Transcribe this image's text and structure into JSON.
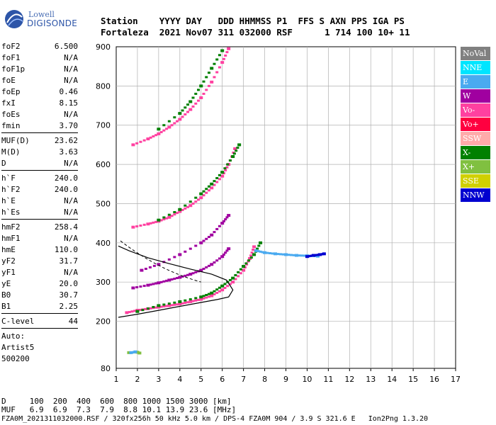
{
  "logo": {
    "line1": "Lowell",
    "line2": "DIGISONDE"
  },
  "header": {
    "line1": "Station    YYYY DAY   DDD HHMMSS P1  FFS S AXN PPS IGA PS",
    "line2": "Fortaleza  2021 Nov07 311 032000 RSF      1 714 100 10+ 11"
  },
  "params": [
    {
      "label": "foF2",
      "value": "6.500"
    },
    {
      "label": "foF1",
      "value": "N/A"
    },
    {
      "label": "foF1p",
      "value": "N/A"
    },
    {
      "label": "foE",
      "value": "N/A"
    },
    {
      "label": "foEp",
      "value": "0.46"
    },
    {
      "label": "fxI",
      "value": "8.15"
    },
    {
      "label": "foEs",
      "value": "N/A"
    },
    {
      "label": "fmin",
      "value": "3.70"
    },
    {
      "label": "MUF(D)",
      "value": "23.62"
    },
    {
      "label": "M(D)",
      "value": "3.63"
    },
    {
      "label": "D",
      "value": "N/A"
    },
    {
      "label": "h`F",
      "value": "240.0"
    },
    {
      "label": "h`F2",
      "value": "240.0"
    },
    {
      "label": "h`E",
      "value": "N/A"
    },
    {
      "label": "h`Es",
      "value": "N/A"
    },
    {
      "label": "hmF2",
      "value": "258.4"
    },
    {
      "label": "hmF1",
      "value": "N/A"
    },
    {
      "label": "hmE",
      "value": "110.0"
    },
    {
      "label": "yF2",
      "value": "31.7"
    },
    {
      "label": "yF1",
      "value": "N/A"
    },
    {
      "label": "yE",
      "value": "20.0"
    },
    {
      "label": "B0",
      "value": "30.7"
    },
    {
      "label": "B1",
      "value": "2.25"
    },
    {
      "label": "C-level",
      "value": "44"
    }
  ],
  "autoscaling": {
    "line1": "Auto:",
    "line2": "Artist5",
    "line3": "500200"
  },
  "legend": [
    {
      "label": "NoVal",
      "color": "#808080"
    },
    {
      "label": "NNE",
      "color": "#00e5ff"
    },
    {
      "label": "E",
      "color": "#4aaaf0"
    },
    {
      "label": "W",
      "color": "#a000a0"
    },
    {
      "label": "Vo-",
      "color": "#ff40a0"
    },
    {
      "label": "Vo+",
      "color": "#ff0040"
    },
    {
      "label": "SSW",
      "color": "#ffaaaa"
    },
    {
      "label": "X-",
      "color": "#008000"
    },
    {
      "label": "X+",
      "color": "#80c040"
    },
    {
      "label": "SSE",
      "color": "#d0d000"
    },
    {
      "label": "NNW",
      "color": "#0000d0"
    }
  ],
  "bottom": {
    "line1": "D     100  200  400  600  800 1000 1500 3000 [km]",
    "line2": "MUF   6.9  6.9  7.3  7.9  8.8 10.1 13.9 23.6 [MHz]",
    "line3": "FZA0M_2021311032000.RSF / 320fx256h 50 kHz 5.0 km / DPS-4 FZA0M 904 / 3.9 S 321.6 E   Ion2Png 1.3.20"
  },
  "chart_data": {
    "type": "scatter",
    "title": "",
    "xlabel": "",
    "ylabel": "",
    "xlim": [
      1,
      17
    ],
    "ylim": [
      80,
      900
    ],
    "xticks": [
      1,
      2,
      3,
      4,
      5,
      6,
      7,
      8,
      9,
      10,
      11,
      12,
      13,
      14,
      15,
      16,
      17
    ],
    "yticks": [
      80,
      200,
      300,
      400,
      500,
      600,
      700,
      800,
      900
    ],
    "grid": true,
    "series": [
      {
        "mode": "Vo-",
        "color": "#ff40a0",
        "points": [
          [
            1.5,
            222
          ],
          [
            2,
            228
          ],
          [
            2.5,
            232
          ],
          [
            3,
            236
          ],
          [
            3.5,
            240
          ],
          [
            4,
            244
          ],
          [
            4.5,
            250
          ],
          [
            5,
            256
          ],
          [
            5.5,
            265
          ],
          [
            6,
            280
          ],
          [
            6.5,
            300
          ],
          [
            7,
            330
          ],
          [
            7.3,
            360
          ],
          [
            7.5,
            390
          ]
        ]
      },
      {
        "mode": "X-",
        "color": "#008000",
        "points": [
          [
            2,
            225
          ],
          [
            3,
            240
          ],
          [
            4,
            250
          ],
          [
            5,
            262
          ],
          [
            5.5,
            272
          ],
          [
            6,
            290
          ],
          [
            6.5,
            310
          ],
          [
            7,
            340
          ],
          [
            7.5,
            370
          ],
          [
            7.8,
            400
          ]
        ]
      },
      {
        "mode": "Vo-",
        "color": "#ff40a0",
        "points": [
          [
            1.8,
            440
          ],
          [
            2.5,
            448
          ],
          [
            3,
            455
          ],
          [
            3.5,
            465
          ],
          [
            4,
            480
          ],
          [
            4.5,
            495
          ],
          [
            5,
            515
          ],
          [
            5.5,
            540
          ],
          [
            6,
            570
          ],
          [
            6.3,
            600
          ],
          [
            6.6,
            640
          ]
        ]
      },
      {
        "mode": "X-",
        "color": "#008000",
        "points": [
          [
            3,
            458
          ],
          [
            4,
            485
          ],
          [
            5,
            525
          ],
          [
            5.5,
            550
          ],
          [
            6,
            580
          ],
          [
            6.5,
            620
          ],
          [
            6.8,
            650
          ]
        ]
      },
      {
        "mode": "Vo-",
        "color": "#ff40a0",
        "points": [
          [
            1.8,
            650
          ],
          [
            2.5,
            665
          ],
          [
            3,
            678
          ],
          [
            3.5,
            695
          ],
          [
            4,
            715
          ],
          [
            4.5,
            740
          ],
          [
            5,
            770
          ],
          [
            5.5,
            810
          ],
          [
            6,
            860
          ],
          [
            6.3,
            895
          ]
        ]
      },
      {
        "mode": "X-",
        "color": "#008000",
        "points": [
          [
            3,
            690
          ],
          [
            4,
            730
          ],
          [
            4.5,
            760
          ],
          [
            5,
            800
          ],
          [
            5.5,
            845
          ],
          [
            6,
            890
          ]
        ]
      },
      {
        "mode": "W",
        "color": "#a000a0",
        "points": [
          [
            1.8,
            285
          ],
          [
            2.5,
            292
          ],
          [
            3,
            298
          ],
          [
            3.5,
            305
          ],
          [
            4,
            312
          ],
          [
            4.5,
            320
          ],
          [
            5,
            330
          ],
          [
            5.5,
            345
          ],
          [
            6,
            365
          ],
          [
            6.3,
            385
          ]
        ]
      },
      {
        "mode": "W",
        "color": "#a000a0",
        "points": [
          [
            2.2,
            330
          ],
          [
            3,
            345
          ],
          [
            4,
            370
          ],
          [
            5,
            400
          ],
          [
            5.5,
            420
          ],
          [
            6,
            450
          ],
          [
            6.3,
            470
          ]
        ]
      },
      {
        "mode": "E",
        "color": "#4aaaf0",
        "points": [
          [
            7.6,
            380
          ],
          [
            8,
            375
          ],
          [
            8.5,
            372
          ],
          [
            9,
            370
          ],
          [
            9.5,
            368
          ],
          [
            10,
            367
          ],
          [
            10.5,
            366
          ]
        ]
      },
      {
        "mode": "NNW",
        "color": "#0000d0",
        "points": [
          [
            10,
            365
          ],
          [
            10.3,
            368
          ],
          [
            10.6,
            370
          ],
          [
            10.8,
            372
          ]
        ]
      },
      {
        "mode": "X+",
        "color": "#80c040",
        "points": [
          [
            1.6,
            120
          ],
          [
            2,
            121
          ],
          [
            2.1,
            119
          ]
        ]
      },
      {
        "mode": "E",
        "color": "#4aaaf0",
        "points": [
          [
            1.7,
            120
          ],
          [
            1.9,
            122
          ]
        ]
      }
    ],
    "profile": [
      [
        1.1,
        210
      ],
      [
        2,
        218
      ],
      [
        3,
        228
      ],
      [
        4,
        238
      ],
      [
        5,
        248
      ],
      [
        5.8,
        256
      ],
      [
        6.3,
        262
      ],
      [
        6.5,
        280
      ],
      [
        6.2,
        305
      ],
      [
        5.5,
        320
      ],
      [
        4.5,
        333
      ],
      [
        3.5,
        347
      ],
      [
        2.5,
        362
      ],
      [
        1.6,
        380
      ],
      [
        1.1,
        392
      ]
    ]
  }
}
